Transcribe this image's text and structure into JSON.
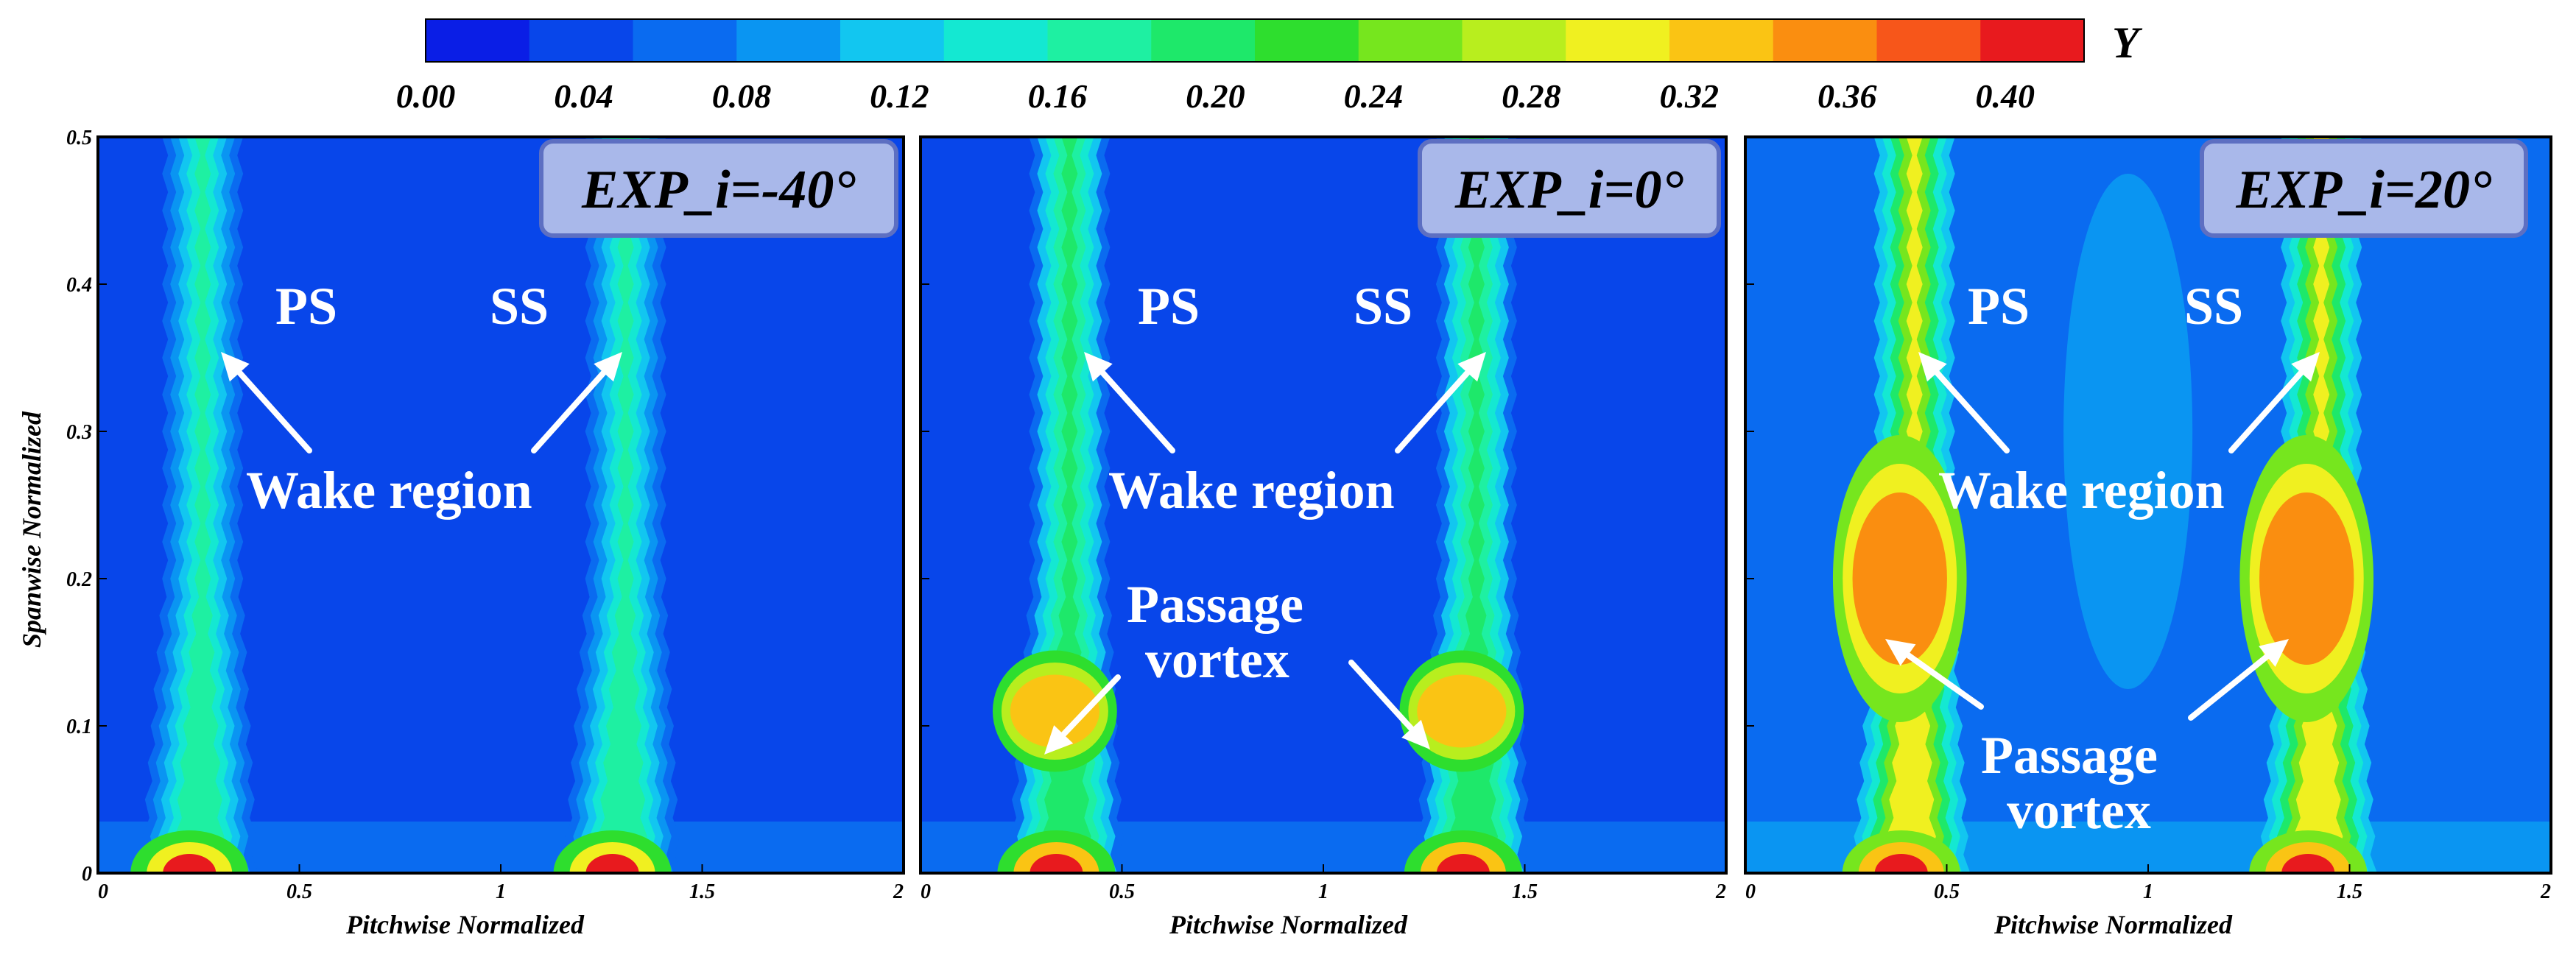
{
  "chart_data": {
    "type": "heatmap",
    "colorbar": {
      "title": "Y",
      "range": [
        0.0,
        0.42
      ],
      "tick_labels": [
        "0.00",
        "0.04",
        "0.08",
        "0.12",
        "0.16",
        "0.20",
        "0.24",
        "0.28",
        "0.32",
        "0.36",
        "0.40"
      ],
      "tick_values": [
        0.0,
        0.04,
        0.08,
        0.12,
        0.16,
        0.2,
        0.24,
        0.28,
        0.32,
        0.36,
        0.4
      ],
      "colors": [
        "#0a1ee6",
        "#0846ea",
        "#0a6bf0",
        "#0a95f2",
        "#12c6f0",
        "#14e8d2",
        "#1ef0a2",
        "#1ee86a",
        "#2ede2e",
        "#76e61e",
        "#b8ee1e",
        "#f0f020",
        "#fac414",
        "#fa8e10",
        "#f7561a",
        "#e81a1e"
      ]
    },
    "panels": [
      {
        "case_label": "EXP_i=-40°",
        "xlabel": "Pitchwise Normalized",
        "ylabel": "Spanwise Normalized",
        "xlim": [
          0,
          2
        ],
        "ylim": [
          0,
          0.5
        ],
        "background_value": 0.035,
        "wakes": [
          {
            "x": 0.26,
            "peak_value": 0.17,
            "hub_value": 0.4
          },
          {
            "x": 1.31,
            "peak_value": 0.17,
            "hub_value": 0.4
          }
        ],
        "passage_vortex_value": 0.0,
        "text_labels": [
          "PS",
          "SS",
          "Wake region"
        ]
      },
      {
        "case_label": "EXP_i=0°",
        "xlabel": "Pitchwise Normalized",
        "ylabel": "",
        "xlim": [
          0,
          2
        ],
        "ylim": [
          0,
          0.5
        ],
        "background_value": 0.045,
        "wakes": [
          {
            "x": 0.37,
            "peak_value": 0.2,
            "hub_value": 0.42
          },
          {
            "x": 1.38,
            "peak_value": 0.2,
            "hub_value": 0.42
          }
        ],
        "passage_vortex_value": 0.32,
        "text_labels": [
          "PS",
          "SS",
          "Wake region",
          "Passage",
          "vortex"
        ]
      },
      {
        "case_label": "EXP_i=20°",
        "xlabel": "Pitchwise Normalized",
        "ylabel": "",
        "xlim": [
          0,
          2
        ],
        "ylim": [
          0,
          0.5
        ],
        "background_value": 0.06,
        "wakes": [
          {
            "x": 0.42,
            "peak_value": 0.3,
            "hub_value": 0.42
          },
          {
            "x": 1.43,
            "peak_value": 0.3,
            "hub_value": 0.42
          }
        ],
        "passage_vortex_value": 0.36,
        "text_labels": [
          "PS",
          "SS",
          "Wake region",
          "Passage",
          "vortex"
        ]
      }
    ],
    "x_tick_labels": [
      "0",
      "0.5",
      "1",
      "1.5",
      "2"
    ],
    "x_tick_values": [
      0,
      0.5,
      1,
      1.5,
      2
    ],
    "y_tick_labels": [
      "0",
      "0.1",
      "0.2",
      "0.3",
      "0.4",
      "0.5"
    ],
    "y_tick_values": [
      0,
      0.1,
      0.2,
      0.3,
      0.4,
      0.5
    ]
  }
}
